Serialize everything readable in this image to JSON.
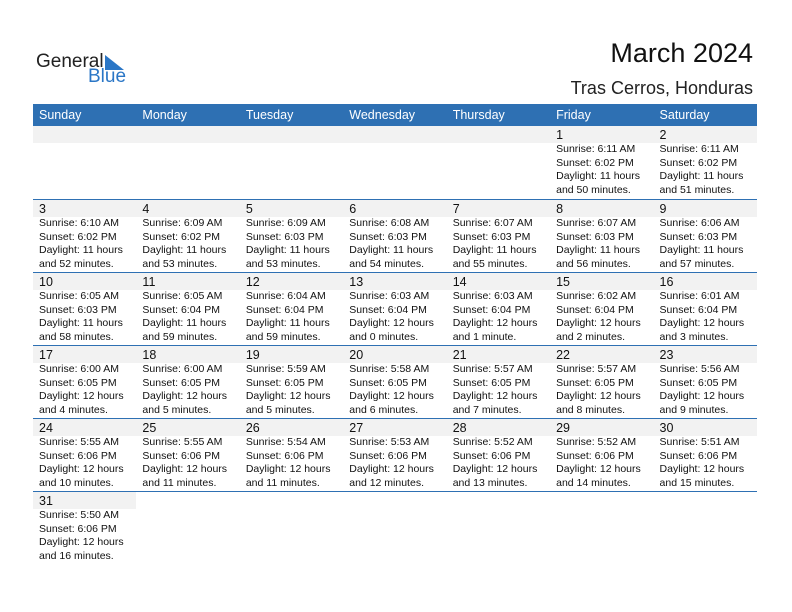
{
  "logo": {
    "text1": "General",
    "text2": "Blue"
  },
  "header": {
    "title": "March 2024",
    "location": "Tras Cerros, Honduras"
  },
  "colors": {
    "accent": "#2e70b3",
    "band": "#f2f2f2",
    "logo_blue": "#2a76c6"
  },
  "weekdays": [
    "Sunday",
    "Monday",
    "Tuesday",
    "Wednesday",
    "Thursday",
    "Friday",
    "Saturday"
  ],
  "weeks": [
    [
      null,
      null,
      null,
      null,
      null,
      {
        "day": "1",
        "sunrise": "Sunrise: 6:11 AM",
        "sunset": "Sunset: 6:02 PM",
        "daylight1": "Daylight: 11 hours",
        "daylight2": "and 50 minutes."
      },
      {
        "day": "2",
        "sunrise": "Sunrise: 6:11 AM",
        "sunset": "Sunset: 6:02 PM",
        "daylight1": "Daylight: 11 hours",
        "daylight2": "and 51 minutes."
      }
    ],
    [
      {
        "day": "3",
        "sunrise": "Sunrise: 6:10 AM",
        "sunset": "Sunset: 6:02 PM",
        "daylight1": "Daylight: 11 hours",
        "daylight2": "and 52 minutes."
      },
      {
        "day": "4",
        "sunrise": "Sunrise: 6:09 AM",
        "sunset": "Sunset: 6:02 PM",
        "daylight1": "Daylight: 11 hours",
        "daylight2": "and 53 minutes."
      },
      {
        "day": "5",
        "sunrise": "Sunrise: 6:09 AM",
        "sunset": "Sunset: 6:03 PM",
        "daylight1": "Daylight: 11 hours",
        "daylight2": "and 53 minutes."
      },
      {
        "day": "6",
        "sunrise": "Sunrise: 6:08 AM",
        "sunset": "Sunset: 6:03 PM",
        "daylight1": "Daylight: 11 hours",
        "daylight2": "and 54 minutes."
      },
      {
        "day": "7",
        "sunrise": "Sunrise: 6:07 AM",
        "sunset": "Sunset: 6:03 PM",
        "daylight1": "Daylight: 11 hours",
        "daylight2": "and 55 minutes."
      },
      {
        "day": "8",
        "sunrise": "Sunrise: 6:07 AM",
        "sunset": "Sunset: 6:03 PM",
        "daylight1": "Daylight: 11 hours",
        "daylight2": "and 56 minutes."
      },
      {
        "day": "9",
        "sunrise": "Sunrise: 6:06 AM",
        "sunset": "Sunset: 6:03 PM",
        "daylight1": "Daylight: 11 hours",
        "daylight2": "and 57 minutes."
      }
    ],
    [
      {
        "day": "10",
        "sunrise": "Sunrise: 6:05 AM",
        "sunset": "Sunset: 6:03 PM",
        "daylight1": "Daylight: 11 hours",
        "daylight2": "and 58 minutes."
      },
      {
        "day": "11",
        "sunrise": "Sunrise: 6:05 AM",
        "sunset": "Sunset: 6:04 PM",
        "daylight1": "Daylight: 11 hours",
        "daylight2": "and 59 minutes."
      },
      {
        "day": "12",
        "sunrise": "Sunrise: 6:04 AM",
        "sunset": "Sunset: 6:04 PM",
        "daylight1": "Daylight: 11 hours",
        "daylight2": "and 59 minutes."
      },
      {
        "day": "13",
        "sunrise": "Sunrise: 6:03 AM",
        "sunset": "Sunset: 6:04 PM",
        "daylight1": "Daylight: 12 hours",
        "daylight2": "and 0 minutes."
      },
      {
        "day": "14",
        "sunrise": "Sunrise: 6:03 AM",
        "sunset": "Sunset: 6:04 PM",
        "daylight1": "Daylight: 12 hours",
        "daylight2": "and 1 minute."
      },
      {
        "day": "15",
        "sunrise": "Sunrise: 6:02 AM",
        "sunset": "Sunset: 6:04 PM",
        "daylight1": "Daylight: 12 hours",
        "daylight2": "and 2 minutes."
      },
      {
        "day": "16",
        "sunrise": "Sunrise: 6:01 AM",
        "sunset": "Sunset: 6:04 PM",
        "daylight1": "Daylight: 12 hours",
        "daylight2": "and 3 minutes."
      }
    ],
    [
      {
        "day": "17",
        "sunrise": "Sunrise: 6:00 AM",
        "sunset": "Sunset: 6:05 PM",
        "daylight1": "Daylight: 12 hours",
        "daylight2": "and 4 minutes."
      },
      {
        "day": "18",
        "sunrise": "Sunrise: 6:00 AM",
        "sunset": "Sunset: 6:05 PM",
        "daylight1": "Daylight: 12 hours",
        "daylight2": "and 5 minutes."
      },
      {
        "day": "19",
        "sunrise": "Sunrise: 5:59 AM",
        "sunset": "Sunset: 6:05 PM",
        "daylight1": "Daylight: 12 hours",
        "daylight2": "and 5 minutes."
      },
      {
        "day": "20",
        "sunrise": "Sunrise: 5:58 AM",
        "sunset": "Sunset: 6:05 PM",
        "daylight1": "Daylight: 12 hours",
        "daylight2": "and 6 minutes."
      },
      {
        "day": "21",
        "sunrise": "Sunrise: 5:57 AM",
        "sunset": "Sunset: 6:05 PM",
        "daylight1": "Daylight: 12 hours",
        "daylight2": "and 7 minutes."
      },
      {
        "day": "22",
        "sunrise": "Sunrise: 5:57 AM",
        "sunset": "Sunset: 6:05 PM",
        "daylight1": "Daylight: 12 hours",
        "daylight2": "and 8 minutes."
      },
      {
        "day": "23",
        "sunrise": "Sunrise: 5:56 AM",
        "sunset": "Sunset: 6:05 PM",
        "daylight1": "Daylight: 12 hours",
        "daylight2": "and 9 minutes."
      }
    ],
    [
      {
        "day": "24",
        "sunrise": "Sunrise: 5:55 AM",
        "sunset": "Sunset: 6:06 PM",
        "daylight1": "Daylight: 12 hours",
        "daylight2": "and 10 minutes."
      },
      {
        "day": "25",
        "sunrise": "Sunrise: 5:55 AM",
        "sunset": "Sunset: 6:06 PM",
        "daylight1": "Daylight: 12 hours",
        "daylight2": "and 11 minutes."
      },
      {
        "day": "26",
        "sunrise": "Sunrise: 5:54 AM",
        "sunset": "Sunset: 6:06 PM",
        "daylight1": "Daylight: 12 hours",
        "daylight2": "and 11 minutes."
      },
      {
        "day": "27",
        "sunrise": "Sunrise: 5:53 AM",
        "sunset": "Sunset: 6:06 PM",
        "daylight1": "Daylight: 12 hours",
        "daylight2": "and 12 minutes."
      },
      {
        "day": "28",
        "sunrise": "Sunrise: 5:52 AM",
        "sunset": "Sunset: 6:06 PM",
        "daylight1": "Daylight: 12 hours",
        "daylight2": "and 13 minutes."
      },
      {
        "day": "29",
        "sunrise": "Sunrise: 5:52 AM",
        "sunset": "Sunset: 6:06 PM",
        "daylight1": "Daylight: 12 hours",
        "daylight2": "and 14 minutes."
      },
      {
        "day": "30",
        "sunrise": "Sunrise: 5:51 AM",
        "sunset": "Sunset: 6:06 PM",
        "daylight1": "Daylight: 12 hours",
        "daylight2": "and 15 minutes."
      }
    ],
    [
      {
        "day": "31",
        "sunrise": "Sunrise: 5:50 AM",
        "sunset": "Sunset: 6:06 PM",
        "daylight1": "Daylight: 12 hours",
        "daylight2": "and 16 minutes."
      }
    ]
  ]
}
